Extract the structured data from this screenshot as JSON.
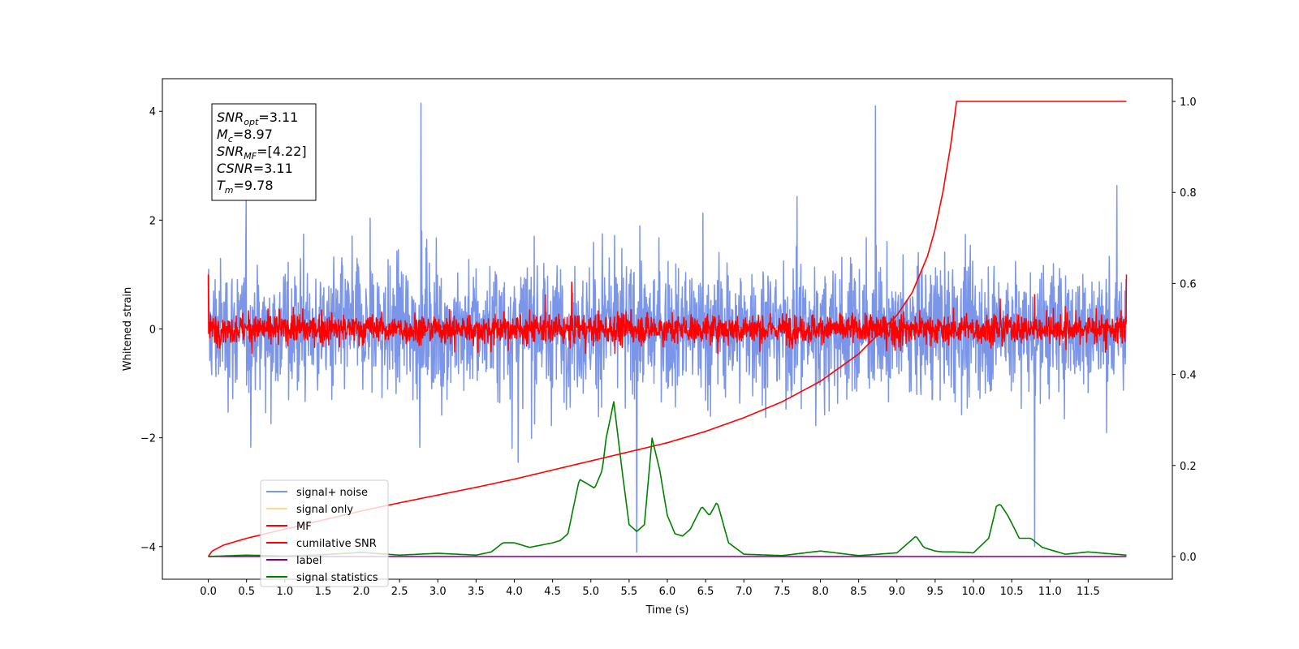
{
  "chart_data": {
    "type": "line",
    "title": "",
    "xlabel": "Time (s)",
    "ylabel": "Whitened strain",
    "xlim": [
      -0.6,
      12.6
    ],
    "ylim": [
      -4.6,
      4.6
    ],
    "y2lim": [
      -0.05,
      1.05
    ],
    "grid": false,
    "legend_position": "lower-left",
    "x_ticks": [
      0.0,
      0.5,
      1.0,
      1.5,
      2.0,
      2.5,
      3.0,
      3.5,
      4.0,
      4.5,
      5.0,
      5.5,
      6.0,
      6.5,
      7.0,
      7.5,
      8.0,
      8.5,
      9.0,
      9.5,
      10.0,
      10.5,
      11.0,
      11.5
    ],
    "x_tick_labels": [
      "0.0",
      "0.5",
      "1.0",
      "1.5",
      "2.0",
      "2.5",
      "3.0",
      "3.5",
      "4.0",
      "4.5",
      "5.0",
      "5.5",
      "6.0",
      "6.5",
      "7.0",
      "7.5",
      "8.0",
      "8.5",
      "9.0",
      "9.5",
      "10.0",
      "10.5",
      "11.0",
      "11.5"
    ],
    "y_ticks": [
      -4,
      -2,
      0,
      2,
      4
    ],
    "y_tick_labels": [
      "−4",
      "−2",
      "0",
      "2",
      "4"
    ],
    "y2_ticks": [
      0.0,
      0.2,
      0.4,
      0.6,
      0.8,
      1.0
    ],
    "y2_tick_labels": [
      "0.0",
      "0.2",
      "0.4",
      "0.6",
      "0.8",
      "1.0"
    ],
    "annotation": {
      "lines": [
        {
          "base": "SNR",
          "sub": "opt",
          "value": "=3.11"
        },
        {
          "base": "M",
          "sub": "c",
          "value": "=8.97"
        },
        {
          "base": "SNR",
          "sub": "MF",
          "value": "=[4.22]"
        },
        {
          "base": "CSNR",
          "sub": "",
          "value": "=3.11"
        },
        {
          "base": "T",
          "sub": "m",
          "value": "=9.78"
        }
      ]
    },
    "series": [
      {
        "name": "signal+ noise",
        "color": "#7b95e8",
        "axis": "left",
        "kind": "noise",
        "x_range": [
          0.0,
          12.0
        ],
        "amplitude": 1.0,
        "peak_max": 4.15,
        "peak_min": -4.1
      },
      {
        "name": "signal only",
        "color": "#ffd98c",
        "axis": "left",
        "kind": "flat",
        "x": [
          0.0,
          12.0
        ],
        "y": [
          0.0,
          0.0
        ]
      },
      {
        "name": "MF",
        "color": "#ff0000",
        "axis": "left",
        "kind": "noise",
        "x_range": [
          0.0,
          12.0
        ],
        "amplitude": 0.22,
        "peak_max": 0.95,
        "peak_min": -0.45
      },
      {
        "name": "cumilative SNR",
        "color": "#ff0000",
        "axis": "right",
        "kind": "curve",
        "x": [
          0.0,
          0.05,
          0.2,
          0.5,
          1.0,
          1.5,
          2.0,
          2.5,
          3.0,
          3.5,
          4.0,
          4.5,
          5.0,
          5.5,
          6.0,
          6.5,
          7.0,
          7.5,
          8.0,
          8.5,
          9.0,
          9.2,
          9.4,
          9.5,
          9.6,
          9.7,
          9.78,
          11.5,
          12.0
        ],
        "y": [
          0.0,
          0.012,
          0.025,
          0.04,
          0.06,
          0.08,
          0.1,
          0.118,
          0.135,
          0.152,
          0.17,
          0.19,
          0.21,
          0.23,
          0.25,
          0.275,
          0.305,
          0.34,
          0.385,
          0.445,
          0.53,
          0.58,
          0.66,
          0.72,
          0.8,
          0.9,
          1.0,
          1.0,
          1.0
        ]
      },
      {
        "name": "label",
        "color": "#800080",
        "axis": "right",
        "kind": "flat",
        "x": [
          0.0,
          12.0
        ],
        "y": [
          0.0,
          0.0
        ]
      },
      {
        "name": "signal statistics",
        "color": "#008000",
        "axis": "right",
        "kind": "curve",
        "x": [
          0.0,
          0.5,
          1.0,
          1.5,
          2.0,
          2.5,
          3.0,
          3.5,
          3.7,
          3.85,
          4.0,
          4.2,
          4.35,
          4.5,
          4.6,
          4.7,
          4.85,
          4.95,
          5.05,
          5.15,
          5.2,
          5.3,
          5.4,
          5.5,
          5.6,
          5.7,
          5.8,
          5.9,
          6.0,
          6.1,
          6.2,
          6.3,
          6.45,
          6.55,
          6.65,
          6.8,
          7.0,
          7.5,
          8.0,
          8.5,
          9.0,
          9.15,
          9.25,
          9.35,
          9.5,
          9.6,
          9.75,
          10.0,
          10.2,
          10.3,
          10.35,
          10.45,
          10.6,
          10.75,
          10.9,
          11.2,
          11.5,
          12.0
        ],
        "y": [
          0.0,
          0.003,
          0.001,
          0.004,
          0.009,
          0.003,
          0.007,
          0.003,
          0.01,
          0.03,
          0.03,
          0.02,
          0.025,
          0.03,
          0.035,
          0.05,
          0.17,
          0.16,
          0.15,
          0.19,
          0.26,
          0.34,
          0.2,
          0.07,
          0.055,
          0.07,
          0.26,
          0.19,
          0.09,
          0.05,
          0.045,
          0.06,
          0.11,
          0.09,
          0.12,
          0.03,
          0.005,
          0.002,
          0.012,
          0.002,
          0.008,
          0.03,
          0.045,
          0.02,
          0.012,
          0.01,
          0.01,
          0.008,
          0.04,
          0.11,
          0.115,
          0.09,
          0.04,
          0.04,
          0.02,
          0.005,
          0.01,
          0.003
        ]
      }
    ]
  }
}
